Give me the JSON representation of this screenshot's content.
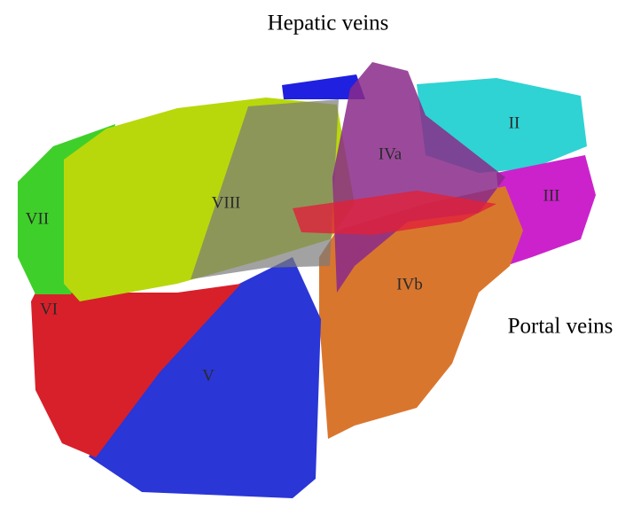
{
  "captions": {
    "hepatic": "Hepatic veins",
    "portal": "Portal veins"
  },
  "segments": {
    "II": "II",
    "III": "III",
    "IVa": "IVa",
    "IVb": "IVb",
    "V": "V",
    "VI": "VI",
    "VII": "VII",
    "VIII": "VIII"
  }
}
